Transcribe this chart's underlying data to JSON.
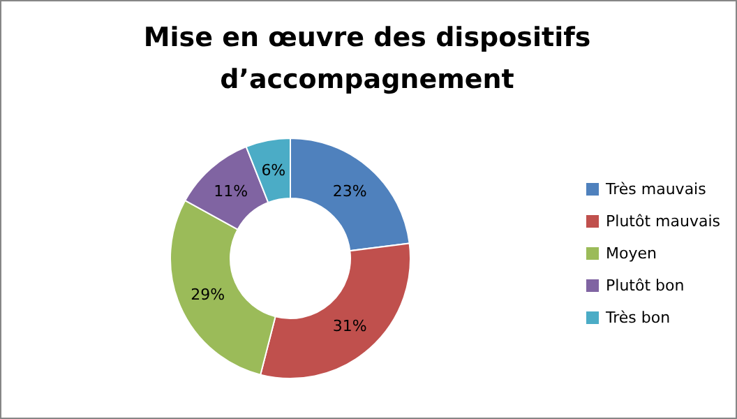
{
  "chart_data": {
    "type": "donut",
    "title": "Mise en œuvre des dispositifs d’accompagnement",
    "categories": [
      "Très mauvais",
      "Plutôt mauvais",
      "Moyen",
      "Plutôt bon",
      "Très bon"
    ],
    "values": [
      23,
      31,
      29,
      11,
      6
    ],
    "colors": [
      "#4f81bd",
      "#c0504d",
      "#9bbb59",
      "#8064a2",
      "#4bacc6"
    ],
    "value_labels": [
      "23%",
      "31%",
      "29%",
      "11%",
      "6%"
    ],
    "legend": "right"
  }
}
